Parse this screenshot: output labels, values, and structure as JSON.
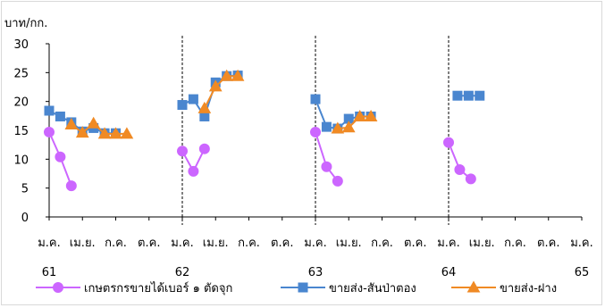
{
  "chart_data": {
    "type": "line",
    "ylabel": "บาท/กก.",
    "ylim": [
      0,
      30
    ],
    "yticks": [
      0,
      5,
      10,
      15,
      20,
      25,
      30
    ],
    "x_month_labels": [
      "ม.ค.",
      "เม.ย.",
      "ก.ค.",
      "ต.ค.",
      "ม.ค.",
      "เม.ย.",
      "ก.ค.",
      "ต.ค.",
      "ม.ค.",
      "เม.ย.",
      "ก.ค.",
      "ต.ค.",
      "ม.ค.",
      "เม.ย.",
      "ก.ค.",
      "ต.ค.",
      "ม.ค."
    ],
    "x_year_labels": [
      "61",
      "62",
      "63",
      "64",
      "65"
    ],
    "month_range": [
      0,
      48
    ],
    "grid": false,
    "year_dividers": [
      12,
      24,
      36
    ],
    "legend_position": "bottom",
    "series": [
      {
        "name": "เกษตรกรขายได้เบอร์ ๑ ตัดจุก",
        "color": "#cc66ff",
        "marker": "circle",
        "segments": [
          [
            [
              0,
              14.7
            ],
            [
              1,
              10.4
            ],
            [
              2,
              5.4
            ]
          ],
          [
            [
              12,
              11.4
            ],
            [
              13,
              7.9
            ],
            [
              14,
              11.8
            ]
          ],
          [
            [
              24,
              14.7
            ],
            [
              25,
              8.7
            ],
            [
              26,
              6.2
            ]
          ],
          [
            [
              36,
              12.9
            ],
            [
              37,
              8.2
            ],
            [
              38,
              6.6
            ]
          ]
        ]
      },
      {
        "name": "ขายส่ง-สันป่าตอง",
        "color": "#4a86cf",
        "marker": "square",
        "segments": [
          [
            [
              0,
              18.4
            ],
            [
              1,
              17.4
            ],
            [
              2,
              16.4
            ],
            [
              3,
              14.8
            ],
            [
              4,
              15.4
            ],
            [
              5,
              14.5
            ],
            [
              6,
              14.5
            ]
          ],
          [
            [
              12,
              19.4
            ],
            [
              13,
              20.4
            ],
            [
              14,
              17.4
            ],
            [
              15,
              23.3
            ],
            [
              16,
              24.4
            ],
            [
              17,
              24.5
            ]
          ],
          [
            [
              24,
              20.4
            ],
            [
              25,
              15.6
            ],
            [
              26,
              15.3
            ],
            [
              27,
              17.0
            ],
            [
              28,
              17.4
            ],
            [
              29,
              17.4
            ]
          ],
          [
            [
              36.8,
              21.0
            ],
            [
              37.8,
              21.0
            ],
            [
              38.8,
              21.0
            ]
          ]
        ]
      },
      {
        "name": "ขายส่ง-ฝาง",
        "color": "#f08a24",
        "marker": "triangle",
        "segments": [
          [
            [
              2,
              16.0
            ],
            [
              3,
              14.6
            ],
            [
              4,
              16.2
            ],
            [
              5,
              14.4
            ],
            [
              6,
              14.4
            ],
            [
              7,
              14.4
            ]
          ],
          [
            [
              14,
              18.8
            ],
            [
              15,
              22.6
            ],
            [
              16,
              24.4
            ],
            [
              17,
              24.4
            ]
          ],
          [
            [
              26,
              15.3
            ],
            [
              27,
              15.5
            ],
            [
              28,
              17.4
            ],
            [
              29,
              17.4
            ]
          ]
        ]
      }
    ]
  }
}
